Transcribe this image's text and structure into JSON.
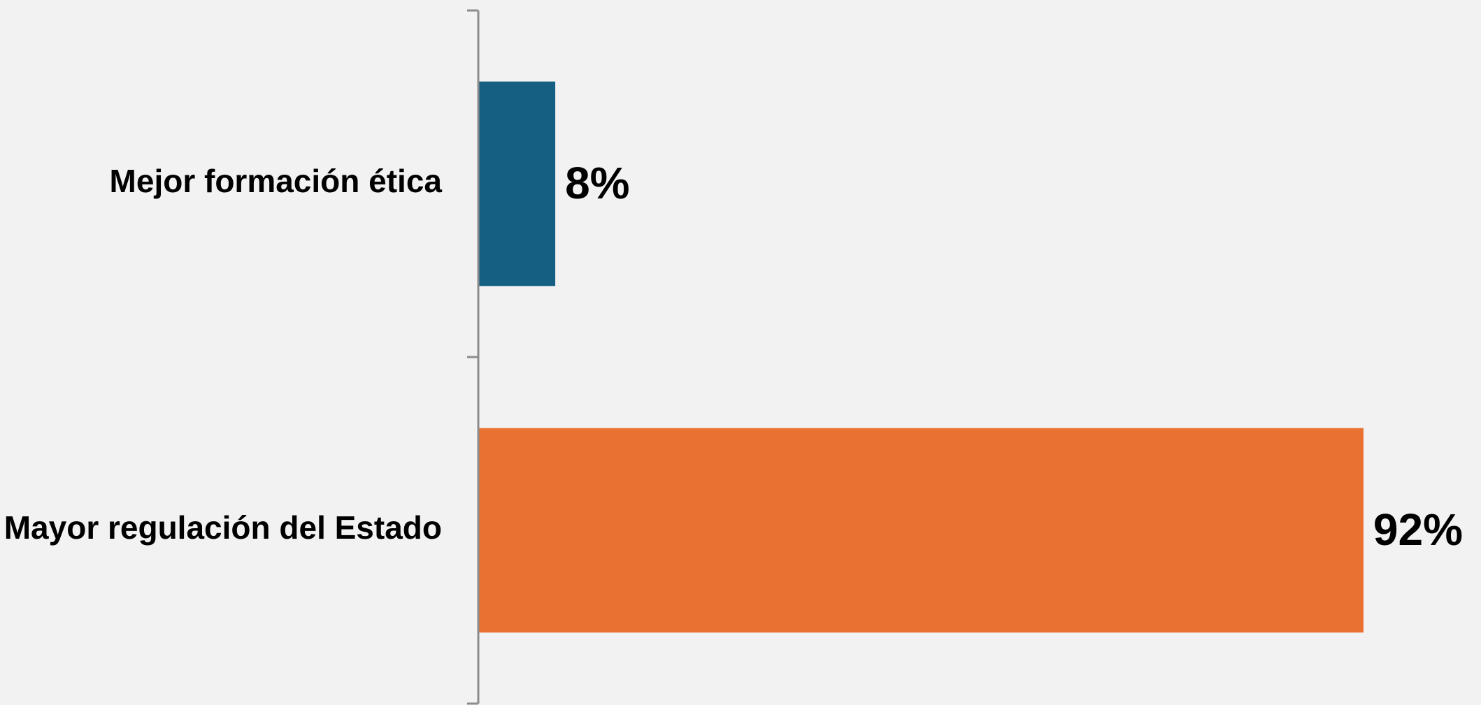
{
  "chart_data": {
    "type": "bar",
    "orientation": "horizontal",
    "categories": [
      "Mejor formación ética",
      "Mayor regulación del Estado"
    ],
    "values": [
      8,
      92
    ],
    "data_labels": [
      "8%",
      "92%"
    ],
    "colors": [
      "#156082",
      "#e97132"
    ],
    "xlim": [
      0,
      100
    ],
    "title": "",
    "xlabel": "",
    "ylabel": "",
    "grid": false,
    "legend": "none"
  }
}
